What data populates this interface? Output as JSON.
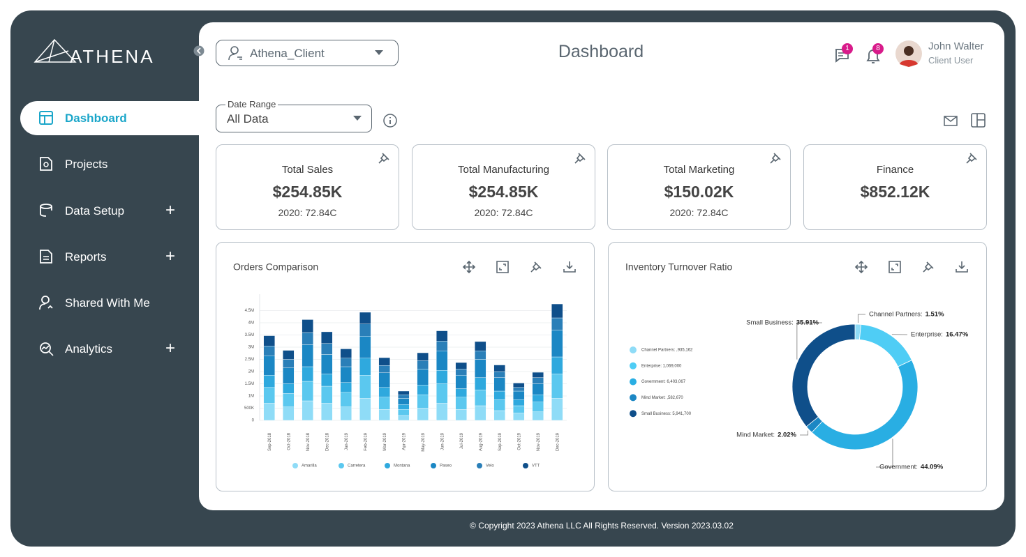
{
  "sidebar": {
    "logo": "ATHENA",
    "nav": [
      "Dashboard",
      "Projects",
      "Data Setup",
      "Reports",
      "Shared With Me",
      "Analytics"
    ]
  },
  "header": {
    "client": "Athena_Client",
    "title": "Dashboard",
    "messages_badge": 1,
    "notifications_badge": 8,
    "user_name": "John Walter",
    "user_role": "Client User"
  },
  "filters": {
    "date_range_label": "Date Range",
    "date_range_value": "All Data"
  },
  "kpis": [
    {
      "title": "Total Sales",
      "value": "$254.85K",
      "note": "2020: 72.84C"
    },
    {
      "title": "Total Manufacturing",
      "value": "$254.85K",
      "note": "2020: 72.84C"
    },
    {
      "title": "Total Marketing",
      "value": "$150.02K",
      "note": "2020: 72.84C"
    },
    {
      "title": "Finance",
      "value": "$852.12K"
    }
  ],
  "footer": "© Copyright 2023 Athena LLC All Rights Reserved. Version 2023.03.02",
  "chart_data": [
    {
      "type": "bar",
      "stacked": true,
      "title": "Orders Comparison",
      "categories": [
        "Sep-2018",
        "Oct-2018",
        "Nov-2018",
        "Dec-2018",
        "Jan-2019",
        "Feb-2019",
        "Mar-2019",
        "Apr-2019",
        "May-2019",
        "Jun-2019",
        "Jul-2019",
        "Aug-2019",
        "Sep-2019",
        "Oct-2019",
        "Nov-2019",
        "Dec-2019"
      ],
      "series": [
        {
          "name": "Amarilla",
          "color": "#8fdcf7",
          "values": [
            700000,
            550000,
            800000,
            700000,
            550000,
            900000,
            450000,
            200000,
            500000,
            700000,
            450000,
            600000,
            400000,
            300000,
            350000,
            900000
          ]
        },
        {
          "name": "Carretera",
          "color": "#5bc8ef",
          "values": [
            650000,
            550000,
            800000,
            700000,
            600000,
            950000,
            500000,
            250000,
            550000,
            800000,
            500000,
            650000,
            450000,
            300000,
            400000,
            1000000
          ]
        },
        {
          "name": "Montana",
          "color": "#2fa9de",
          "values": [
            500000,
            400000,
            600000,
            500000,
            400000,
            700000,
            400000,
            200000,
            400000,
            550000,
            350000,
            500000,
            350000,
            250000,
            300000,
            700000
          ]
        },
        {
          "name": "Paseo",
          "color": "#1b87c4",
          "values": [
            800000,
            650000,
            900000,
            800000,
            650000,
            900000,
            600000,
            250000,
            650000,
            800000,
            550000,
            750000,
            550000,
            350000,
            450000,
            1100000
          ]
        },
        {
          "name": "Velo",
          "color": "#2a7fb8",
          "values": [
            400000,
            350000,
            500000,
            450000,
            350000,
            500000,
            300000,
            150000,
            350000,
            400000,
            250000,
            350000,
            250000,
            150000,
            250000,
            500000
          ]
        },
        {
          "name": "VTT",
          "color": "#0f4f8a",
          "values": [
            420000,
            370000,
            530000,
            480000,
            380000,
            480000,
            320000,
            150000,
            320000,
            420000,
            270000,
            380000,
            270000,
            180000,
            220000,
            570000
          ]
        }
      ],
      "ylim": [
        0,
        5000000
      ],
      "yticks": [
        {
          "value": 4500000,
          "label": "4.5M"
        },
        {
          "value": 4000000,
          "label": "4M"
        },
        {
          "value": 3500000,
          "label": "3.5M"
        },
        {
          "value": 3000000,
          "label": "3M"
        },
        {
          "value": 2500000,
          "label": "2.5M"
        },
        {
          "value": 2000000,
          "label": "2M"
        },
        {
          "value": 1500000,
          "label": "1.5M"
        },
        {
          "value": 1000000,
          "label": "1M"
        },
        {
          "value": 500000,
          "label": "500K"
        },
        0
      ],
      "grid": true
    },
    {
      "type": "pie",
      "donut": true,
      "title": "Inventory Turnover Ratio",
      "categories": [
        "Channel Partners:",
        "Enterprise:",
        "Government:",
        "Mind Market:",
        "Small Business:"
      ],
      "values": [
        1.51,
        16.47,
        44.09,
        2.02,
        35.91
      ],
      "value_labels": [
        "1.51%",
        "16.47%",
        "44.09%",
        "2.02%",
        "35.91%"
      ],
      "colors": [
        "#8fdcf7",
        "#4fcdf5",
        "#29aee3",
        "#1c87c4",
        "#0f4f8a"
      ],
      "legend_labels": [
        "Channel Partners: ,935,162",
        "Enterprise: 1,069,000",
        "Government: 6,403,067",
        "Mind Market: ,582,670",
        "Small Business: 5,941,700"
      ]
    }
  ]
}
